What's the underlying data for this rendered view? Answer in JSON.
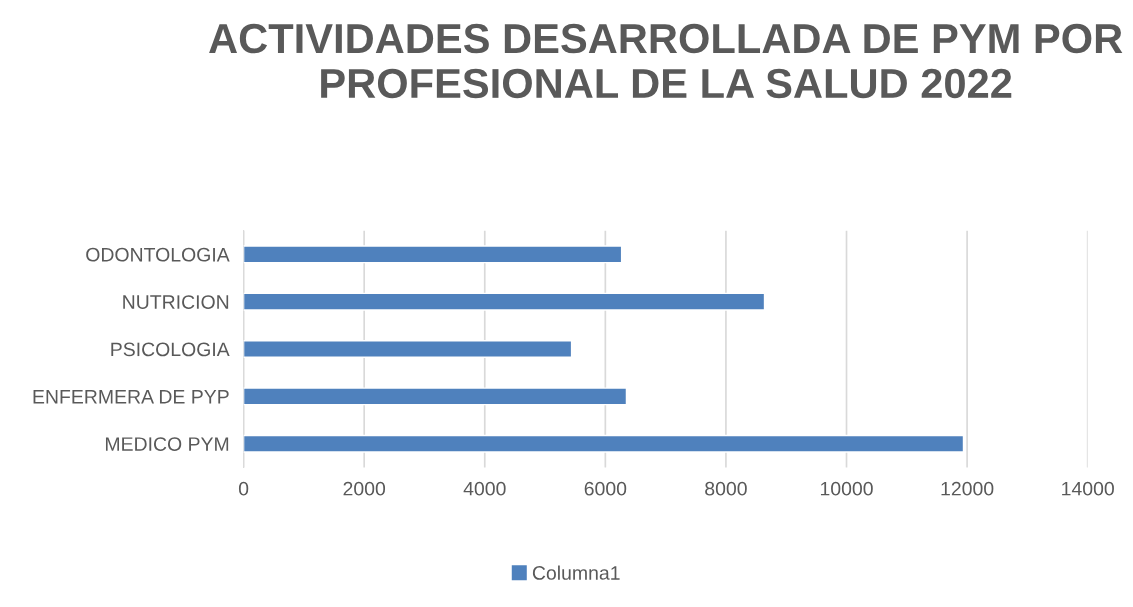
{
  "chart_data": {
    "type": "bar",
    "orientation": "horizontal",
    "title": "ACTIVIDADES DESARROLLADA DE PYM POR PROFESIONAL DE LA SALUD 2022",
    "categories": [
      "ODONTOLOGIA",
      "NUTRICION",
      "PSICOLOGIA",
      "ENFERMERA DE PYP",
      "MEDICO PYM"
    ],
    "series": [
      {
        "name": "Columna1",
        "color": "#4f81bd",
        "values": [
          6270,
          8640,
          5440,
          6350,
          11940
        ]
      }
    ],
    "xlim": [
      0,
      14000
    ],
    "xticks": [
      0,
      2000,
      4000,
      6000,
      8000,
      10000,
      12000,
      14000
    ],
    "grid": "x",
    "legend": "bottom"
  }
}
